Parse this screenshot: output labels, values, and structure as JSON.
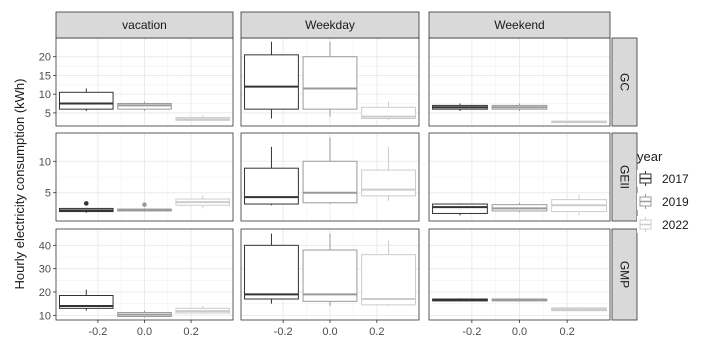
{
  "chart_data": {
    "type": "boxplot",
    "ylabel": "Hourly electricity consumption (kWh)",
    "xlabel": "",
    "columns": [
      "vacation",
      "Weekday",
      "Weekend"
    ],
    "rows": [
      "GC",
      "GEII",
      "GMP"
    ],
    "x_ticks": [
      "-0.2",
      "0.0",
      "0.2"
    ],
    "x_tick_values": [
      -0.2,
      0.0,
      0.2
    ],
    "xlim": [
      -0.38,
      0.38
    ],
    "x_positions": [
      -0.25,
      0.0,
      0.25
    ],
    "box_half_width": 0.115,
    "y_axes": {
      "GC": {
        "ylim": [
          1.5,
          25
        ],
        "ticks": [
          5,
          10,
          15,
          20
        ],
        "tick_labels": [
          "5",
          "10",
          "15",
          "20"
        ]
      },
      "GEII": {
        "ylim": [
          0.5,
          14.5
        ],
        "ticks": [
          5,
          10
        ],
        "tick_labels": [
          "5",
          "10"
        ]
      },
      "GMP": {
        "ylim": [
          8,
          47
        ],
        "ticks": [
          10,
          20,
          30,
          40
        ],
        "tick_labels": [
          "10",
          "20",
          "30",
          "40"
        ]
      }
    },
    "legend": {
      "title": "year",
      "placement": "right",
      "entries": [
        {
          "label": "2017",
          "color": "#333333"
        },
        {
          "label": "2019",
          "color": "#9a9a9a"
        },
        {
          "label": "2022",
          "color": "#cccccc"
        }
      ]
    },
    "grid": true,
    "panels": [
      {
        "row": "GC",
        "col": "vacation",
        "boxes": [
          {
            "year": "2017",
            "min": 5.5,
            "q1": 6,
            "median": 7.5,
            "q3": 10.5,
            "max": 11.5,
            "outliers": []
          },
          {
            "year": "2019",
            "min": 5.5,
            "q1": 6,
            "median": 7,
            "q3": 7.5,
            "max": 8,
            "outliers": []
          },
          {
            "year": "2022",
            "min": 3,
            "q1": 3,
            "median": 3.3,
            "q3": 3.8,
            "max": 4.5,
            "outliers": []
          }
        ]
      },
      {
        "row": "GC",
        "col": "Weekday",
        "boxes": [
          {
            "year": "2017",
            "min": 3.5,
            "q1": 6,
            "median": 12,
            "q3": 20.5,
            "max": 24,
            "outliers": []
          },
          {
            "year": "2019",
            "min": 4,
            "q1": 6,
            "median": 11.5,
            "q3": 20,
            "max": 24,
            "outliers": []
          },
          {
            "year": "2022",
            "min": 3,
            "q1": 3.5,
            "median": 4,
            "q3": 6.5,
            "max": 8,
            "outliers": []
          }
        ]
      },
      {
        "row": "GC",
        "col": "Weekend",
        "boxes": [
          {
            "year": "2017",
            "min": 5.5,
            "q1": 6,
            "median": 6.5,
            "q3": 7,
            "max": 7.5,
            "outliers": []
          },
          {
            "year": "2019",
            "min": 5.5,
            "q1": 6,
            "median": 6.5,
            "q3": 7,
            "max": 7.5,
            "outliers": []
          },
          {
            "year": "2022",
            "min": 2.3,
            "q1": 2.4,
            "median": 2.6,
            "q3": 2.8,
            "max": 2.9,
            "outliers": []
          }
        ]
      },
      {
        "row": "GEII",
        "col": "vacation",
        "boxes": [
          {
            "year": "2017",
            "min": 1.8,
            "q1": 2,
            "median": 2.2,
            "q3": 2.5,
            "max": 2.6,
            "outliers": [
              3.3
            ]
          },
          {
            "year": "2019",
            "min": 2,
            "q1": 2.1,
            "median": 2.2,
            "q3": 2.4,
            "max": 2.5,
            "outliers": [
              3.1
            ]
          },
          {
            "year": "2022",
            "min": 2.5,
            "q1": 3,
            "median": 3.5,
            "q3": 4,
            "max": 4.6,
            "outliers": []
          }
        ]
      },
      {
        "row": "GEII",
        "col": "Weekday",
        "boxes": [
          {
            "year": "2017",
            "min": 3,
            "q1": 3.2,
            "median": 4.3,
            "q3": 8.9,
            "max": 12.3,
            "outliers": []
          },
          {
            "year": "2019",
            "min": 3.2,
            "q1": 3.4,
            "median": 5,
            "q3": 10,
            "max": 13.8,
            "outliers": []
          },
          {
            "year": "2022",
            "min": 3.7,
            "q1": 4.5,
            "median": 5.5,
            "q3": 8.6,
            "max": 12.3,
            "outliers": []
          }
        ]
      },
      {
        "row": "GEII",
        "col": "Weekend",
        "boxes": [
          {
            "year": "2017",
            "min": 1.4,
            "q1": 1.7,
            "median": 2.7,
            "q3": 3.2,
            "max": 3.3,
            "outliers": []
          },
          {
            "year": "2019",
            "min": 1.9,
            "q1": 2.1,
            "median": 2.5,
            "q3": 3.1,
            "max": 3.4,
            "outliers": []
          },
          {
            "year": "2022",
            "min": 1.4,
            "q1": 2,
            "median": 3,
            "q3": 3.9,
            "max": 4.7,
            "outliers": []
          }
        ]
      },
      {
        "row": "GMP",
        "col": "vacation",
        "boxes": [
          {
            "year": "2017",
            "min": 12,
            "q1": 13,
            "median": 14,
            "q3": 18.5,
            "max": 21,
            "outliers": []
          },
          {
            "year": "2019",
            "min": 9,
            "q1": 9.5,
            "median": 10.3,
            "q3": 11.2,
            "max": 12,
            "outliers": []
          },
          {
            "year": "2022",
            "min": 10.5,
            "q1": 11,
            "median": 11.8,
            "q3": 13,
            "max": 14,
            "outliers": []
          }
        ]
      },
      {
        "row": "GMP",
        "col": "Weekday",
        "boxes": [
          {
            "year": "2017",
            "min": 15,
            "q1": 17,
            "median": 19,
            "q3": 40,
            "max": 45,
            "outliers": []
          },
          {
            "year": "2019",
            "min": 14,
            "q1": 16,
            "median": 19,
            "q3": 38,
            "max": 45,
            "outliers": []
          },
          {
            "year": "2022",
            "min": 14,
            "q1": 14.5,
            "median": 17,
            "q3": 36,
            "max": 42,
            "outliers": []
          }
        ]
      },
      {
        "row": "GMP",
        "col": "Weekend",
        "boxes": [
          {
            "year": "2017",
            "min": 16,
            "q1": 16.2,
            "median": 16.5,
            "q3": 17,
            "max": 17.3,
            "outliers": []
          },
          {
            "year": "2019",
            "min": 16,
            "q1": 16.2,
            "median": 16.5,
            "q3": 17,
            "max": 17.3,
            "outliers": []
          },
          {
            "year": "2022",
            "min": 11.8,
            "q1": 12,
            "median": 12.5,
            "q3": 13.2,
            "max": 13.6,
            "outliers": []
          }
        ]
      }
    ]
  }
}
